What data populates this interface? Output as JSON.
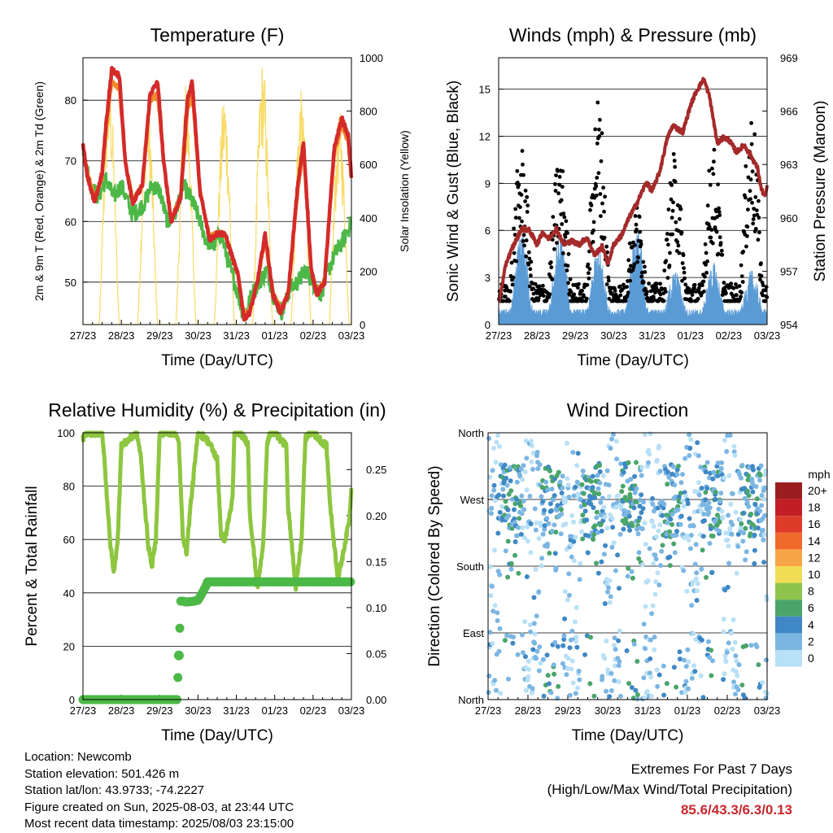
{
  "x_ticks": [
    "27/23",
    "28/23",
    "29/23",
    "30/23",
    "31/23",
    "01/23",
    "02/23",
    "03/23"
  ],
  "chart_data": [
    {
      "type": "line",
      "title": "Temperature (F)",
      "xlabel": "Time (Day/UTC)",
      "ylabel": "2m & 9m T (Red, Orange) & 2m Td (Green)",
      "ylabel_right": "Solar Insolation (Yellow)",
      "ylim": [
        43,
        87
      ],
      "yticks": [
        50,
        60,
        70,
        80
      ],
      "ylim_right": [
        0,
        1000
      ],
      "yticks_right": [
        0,
        200,
        400,
        600,
        800,
        1000
      ],
      "grid": true,
      "series": [
        {
          "name": "2m T",
          "color": "#d42a2a",
          "x": [
            0,
            0.1,
            0.3,
            0.5,
            0.6,
            0.75,
            0.95,
            1.1,
            1.3,
            1.55,
            1.75,
            1.95,
            2.1,
            2.3,
            2.55,
            2.72,
            2.85,
            3.05,
            3.3,
            3.5,
            3.7,
            3.9,
            4.05,
            4.2,
            4.35,
            4.55,
            4.75,
            4.95,
            5.15,
            5.35,
            5.6,
            5.75,
            5.95,
            6.1,
            6.3,
            6.55,
            6.75,
            6.92,
            7.0
          ],
          "values": [
            73,
            68,
            63,
            68,
            76,
            85,
            84,
            70,
            63,
            66,
            81,
            83,
            70,
            60,
            64,
            80,
            83,
            65,
            57,
            58,
            58,
            54,
            51,
            44,
            45,
            50,
            58,
            48,
            45,
            48,
            66,
            73,
            52,
            48,
            50,
            72,
            77,
            74,
            67
          ]
        },
        {
          "name": "9m T",
          "color": "#f08a2a",
          "x": [
            0,
            0.1,
            0.3,
            0.5,
            0.6,
            0.75,
            0.95,
            1.1,
            1.3,
            1.55,
            1.75,
            1.95,
            2.1,
            2.3,
            2.55,
            2.72,
            2.85,
            3.05,
            3.3,
            3.5,
            3.7,
            3.9,
            4.05,
            4.2,
            4.35,
            4.55,
            4.75,
            4.95,
            5.15,
            5.35,
            5.6,
            5.75,
            5.95,
            6.1,
            6.3,
            6.55,
            6.75,
            6.92,
            7.0
          ],
          "values": [
            72.5,
            68.5,
            64,
            67,
            75,
            83,
            82,
            70,
            63.5,
            66,
            80,
            81,
            70,
            60.5,
            64,
            78,
            81,
            65,
            57.5,
            58,
            58,
            54,
            51,
            44.5,
            45.5,
            50,
            57,
            48.5,
            45.5,
            48,
            65,
            72,
            52,
            48.5,
            50,
            71,
            76,
            73,
            67
          ]
        },
        {
          "name": "2m Td",
          "color": "#4cb847",
          "x": [
            0,
            0.2,
            0.4,
            0.6,
            0.8,
            1.0,
            1.3,
            1.6,
            1.8,
            2.0,
            2.2,
            2.4,
            2.6,
            2.8,
            3.0,
            3.2,
            3.4,
            3.6,
            3.8,
            4.0,
            4.2,
            4.4,
            4.6,
            4.8,
            5.0,
            5.2,
            5.4,
            5.6,
            5.8,
            6.0,
            6.2,
            6.4,
            6.6,
            6.8,
            7.0
          ],
          "values": [
            72,
            66,
            64,
            67,
            64,
            66,
            61,
            63,
            66,
            65,
            60,
            61,
            66,
            64,
            61,
            57,
            56,
            58,
            53,
            49,
            44,
            48,
            50,
            52,
            47,
            45,
            49,
            50,
            52,
            50,
            48,
            52,
            55,
            57,
            60
          ]
        },
        {
          "name": "Solar Insolation",
          "color": "#f7d758",
          "axis": "right",
          "days": [
            0,
            1,
            2,
            3,
            4,
            5,
            6
          ],
          "peaks": [
            940,
            860,
            920,
            880,
            1000,
            880,
            800
          ]
        }
      ]
    },
    {
      "type": "line",
      "title": "Winds (mph) & Pressure (mb)",
      "xlabel": "Time (Day/UTC)",
      "ylabel": "Sonic Wind & Gust (Blue, Black)",
      "ylabel_right": "Station Pressure (Maroon)",
      "ylim": [
        0,
        17
      ],
      "yticks": [
        0,
        3,
        6,
        9,
        12,
        15
      ],
      "ylim_right": [
        954,
        969
      ],
      "yticks_right": [
        954,
        957,
        960,
        963,
        966,
        969
      ],
      "grid": true,
      "series": [
        {
          "name": "Sonic Wind",
          "color": "#5b9bd5",
          "daily_peaks": [
            6.0,
            6.0,
            5.0,
            6.5,
            3.5,
            4.0,
            3.5,
            4.5
          ]
        },
        {
          "name": "Gust",
          "color": "#000000",
          "daily_peaks": [
            11.5,
            11.0,
            14.6,
            8.0,
            11.0,
            11.5,
            13.8,
            10.0
          ]
        },
        {
          "name": "Station Pressure",
          "color": "#a52a2a",
          "axis": "right",
          "x": [
            0,
            0.2,
            0.4,
            0.6,
            0.8,
            1.0,
            1.15,
            1.3,
            1.5,
            1.7,
            1.9,
            2.1,
            2.3,
            2.5,
            2.7,
            2.85,
            3.0,
            3.2,
            3.4,
            3.6,
            3.85,
            4.0,
            4.2,
            4.4,
            4.55,
            4.8,
            5.0,
            5.15,
            5.35,
            5.5,
            5.7,
            5.85,
            6.0,
            6.2,
            6.4,
            6.6,
            6.75,
            6.85,
            6.95,
            7.0
          ],
          "values": [
            955.2,
            957.5,
            958.5,
            959.4,
            959.3,
            958.5,
            959.2,
            958.8,
            959.4,
            958.5,
            958.7,
            958.5,
            958.9,
            957.9,
            958.4,
            957.4,
            958.5,
            959.0,
            960.0,
            960.8,
            962.0,
            961.5,
            962.6,
            964.5,
            965.2,
            964.8,
            966.3,
            967.1,
            967.8,
            966.8,
            964.2,
            964.5,
            964.4,
            963.7,
            964.1,
            963.4,
            962.8,
            961.6,
            961.2,
            961.8
          ]
        }
      ]
    },
    {
      "type": "line",
      "title": "Relative Humidity (%) & Precipitation (in)",
      "xlabel": "Time (Day/UTC)",
      "ylabel": "Percent & Total Rainfall",
      "ylim": [
        0,
        100
      ],
      "yticks": [
        0,
        20,
        40,
        60,
        80,
        100
      ],
      "ylim_right": [
        0,
        0.29
      ],
      "yticks_right": [
        0.0,
        0.05,
        0.1,
        0.15,
        0.2,
        0.25
      ],
      "grid": true,
      "series": [
        {
          "name": "Relative Humidity",
          "color": "#8dc63f",
          "x": [
            0,
            0.1,
            0.5,
            0.55,
            0.7,
            0.8,
            0.9,
            1.0,
            1.4,
            1.5,
            1.7,
            1.8,
            1.9,
            2.0,
            2.4,
            2.5,
            2.6,
            2.7,
            2.8,
            3.0,
            3.2,
            3.3,
            3.5,
            3.6,
            3.7,
            3.9,
            3.95,
            4.1,
            4.3,
            4.35,
            4.55,
            4.7,
            4.8,
            4.9,
            5.0,
            5.3,
            5.35,
            5.55,
            5.7,
            5.8,
            5.9,
            6.0,
            6.35,
            6.45,
            6.65,
            6.8,
            6.95,
            7.0
          ],
          "values": [
            98,
            100,
            100,
            92,
            60,
            48,
            58,
            95,
            100,
            92,
            58,
            50,
            60,
            100,
            100,
            96,
            62,
            55,
            72,
            100,
            98,
            96,
            90,
            62,
            60,
            75,
            100,
            100,
            96,
            70,
            42,
            58,
            96,
            100,
            100,
            95,
            72,
            42,
            60,
            98,
            100,
            100,
            95,
            72,
            45,
            56,
            68,
            80
          ]
        },
        {
          "name": "Total Precipitation",
          "color": "#4cb847",
          "axis": "right",
          "x": [
            0,
            2.45,
            2.5,
            2.55,
            2.6,
            2.7,
            2.9,
            3.0,
            3.1,
            3.2,
            3.25,
            7.0
          ],
          "values": [
            0,
            0,
            0.048,
            0.107,
            0.107,
            0.106,
            0.107,
            0.108,
            0.115,
            0.123,
            0.128,
            0.128
          ]
        }
      ]
    },
    {
      "type": "scatter",
      "title": "Wind Direction",
      "xlabel": "Time (Day/UTC)",
      "ylabel": "Direction (Colored By Speed)",
      "yticks": [
        "North",
        "East",
        "South",
        "West",
        "North"
      ],
      "ylim": [
        0,
        360
      ],
      "grid": true,
      "legend": {
        "title": "mph",
        "placement": "right",
        "labels": [
          "20+",
          "18",
          "16",
          "14",
          "12",
          "10",
          "8",
          "6",
          "4",
          "2",
          "0"
        ],
        "colors": [
          "#9c1d20",
          "#c21f25",
          "#de3b2a",
          "#f06a2c",
          "#f8a547",
          "#f1dd55",
          "#8ec44b",
          "#4aa56a",
          "#3f88c5",
          "#7bb6e3",
          "#b8e0f6"
        ]
      }
    }
  ],
  "info": {
    "location": "Location: Newcomb",
    "elevation": "Station elevation: 501.426 m",
    "latlon": "Station lat/lon: 43.9733; -74.2227",
    "created": "Figure created on Sun, 2025-08-03, at 23:44 UTC",
    "timestamp": "Most recent data timestamp: 2025/08/03 23:15:00"
  },
  "extremes": {
    "title": "Extremes For Past 7 Days",
    "subtitle": "(High/Low/Max Wind/Total Precipitation)",
    "values": "85.6/43.3/6.3/0.13"
  }
}
